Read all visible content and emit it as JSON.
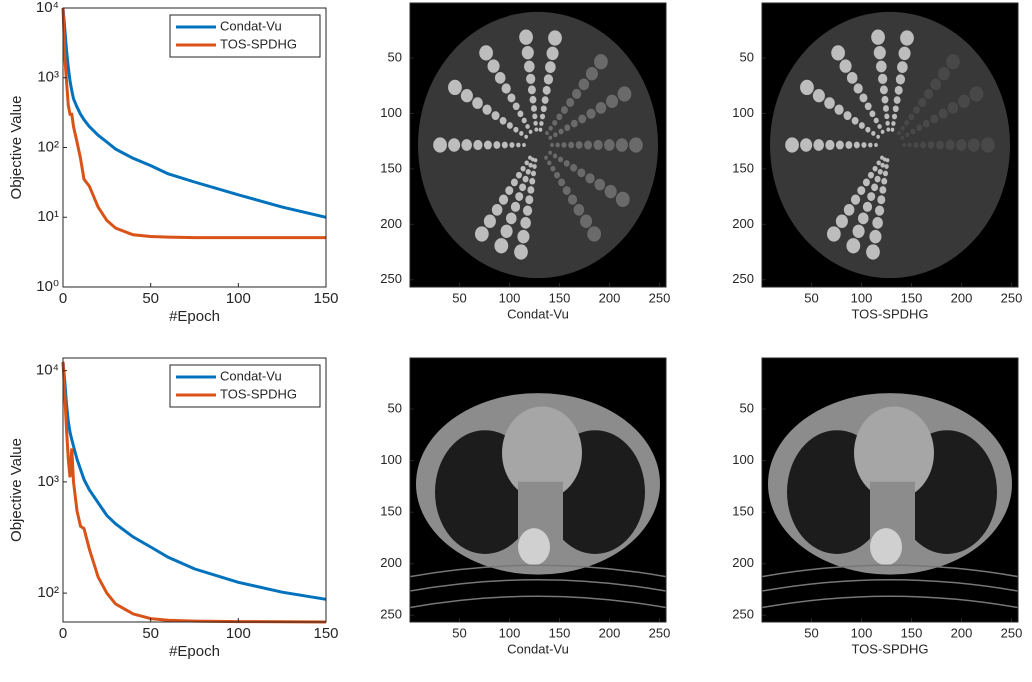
{
  "chart_data": [
    {
      "type": "line",
      "log_y": true,
      "legend": "upper right",
      "xlabel": "#Epoch",
      "ylabel": "Objective Value",
      "xlim": [
        0,
        150
      ],
      "xticks": [
        0,
        50,
        100,
        150
      ],
      "ylim": [
        1,
        10000
      ],
      "yticks": [
        {
          "value": 1,
          "label": "10⁰"
        },
        {
          "value": 10,
          "label": "10¹"
        },
        {
          "value": 100,
          "label": "10²"
        },
        {
          "value": 1000,
          "label": "10³"
        },
        {
          "value": 10000,
          "label": "10⁴"
        }
      ],
      "x": [
        0,
        1,
        2,
        3,
        4,
        5,
        6,
        8,
        10,
        12,
        15,
        20,
        25,
        30,
        40,
        50,
        60,
        75,
        100,
        125,
        150
      ],
      "series": [
        {
          "name": "Condat-Vu",
          "color": "#0072bd",
          "values": [
            10000,
            5000,
            2500,
            1400,
            900,
            650,
            500,
            380,
            300,
            250,
            200,
            150,
            120,
            95,
            70,
            55,
            42,
            32,
            21,
            14,
            10
          ]
        },
        {
          "name": "TOS-SPDHG",
          "color": "#d95319",
          "values": [
            10000,
            2000,
            900,
            400,
            300,
            300,
            200,
            120,
            70,
            35,
            28,
            14,
            9,
            7,
            5.6,
            5.3,
            5.2,
            5.1,
            5.1,
            5.1,
            5.1
          ]
        }
      ]
    },
    {
      "type": "image",
      "xlabel": "Condat-Vu",
      "xlim": [
        0.5,
        256.5
      ],
      "ylim": [
        0.5,
        256.5
      ],
      "xticks": [
        50,
        100,
        150,
        200,
        250
      ],
      "yticks": [
        50,
        100,
        150,
        200,
        250
      ]
    },
    {
      "type": "image",
      "xlabel": "TOS-SPDHG",
      "xlim": [
        0.5,
        256.5
      ],
      "ylim": [
        0.5,
        256.5
      ],
      "xticks": [
        50,
        100,
        150,
        200,
        250
      ],
      "yticks": [
        50,
        100,
        150,
        200,
        250
      ]
    },
    {
      "type": "line",
      "log_y": true,
      "legend": "upper right",
      "xlabel": "#Epoch",
      "ylabel": "Objective Value",
      "xlim": [
        0,
        150
      ],
      "xticks": [
        0,
        50,
        100,
        150
      ],
      "ylim": [
        55,
        13000
      ],
      "yticks": [
        {
          "value": 100,
          "label": "10²"
        },
        {
          "value": 1000,
          "label": "10³"
        },
        {
          "value": 10000,
          "label": "10⁴"
        }
      ],
      "x": [
        0,
        1,
        2,
        3,
        4,
        5,
        6,
        8,
        10,
        12,
        15,
        20,
        25,
        30,
        40,
        50,
        60,
        75,
        100,
        125,
        150
      ],
      "series": [
        {
          "name": "Condat-Vu",
          "color": "#0072bd",
          "values": [
            12000,
            8000,
            5000,
            3500,
            2800,
            2400,
            2100,
            1600,
            1300,
            1050,
            850,
            650,
            500,
            420,
            320,
            260,
            210,
            165,
            125,
            102,
            88
          ]
        },
        {
          "name": "TOS-SPDHG",
          "color": "#d95319",
          "values": [
            12000,
            6000,
            3000,
            1600,
            1100,
            2000,
            1000,
            550,
            400,
            380,
            250,
            140,
            100,
            80,
            65,
            59,
            57,
            56,
            55.5,
            55.2,
            55
          ]
        }
      ]
    },
    {
      "type": "image",
      "xlabel": "Condat-Vu",
      "xlim": [
        0.5,
        256.5
      ],
      "ylim": [
        0.5,
        256.5
      ],
      "xticks": [
        50,
        100,
        150,
        200,
        250
      ],
      "yticks": [
        50,
        100,
        150,
        200,
        250
      ]
    },
    {
      "type": "image",
      "xlabel": "TOS-SPDHG",
      "xlim": [
        0.5,
        256.5
      ],
      "ylim": [
        0.5,
        256.5
      ],
      "xticks": [
        50,
        100,
        150,
        200,
        250
      ],
      "yticks": [
        50,
        100,
        150,
        200,
        250
      ]
    }
  ]
}
